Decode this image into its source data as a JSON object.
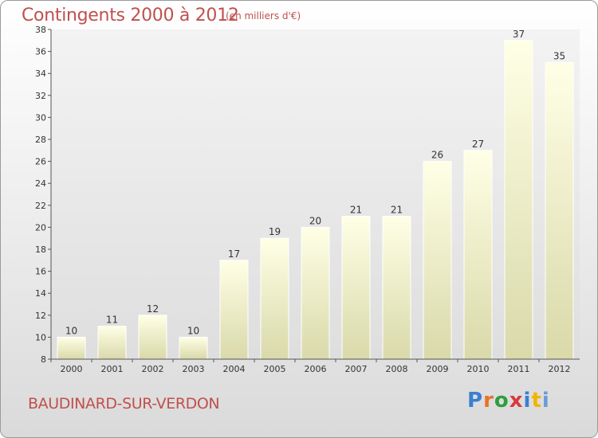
{
  "title": "Contingents 2000 à 2012",
  "subtitle": "(en milliers d'€)",
  "commune": "BAUDINARD-SUR-VERDON",
  "logo": {
    "text": "Proxiti",
    "colors": [
      "#3a7fd0",
      "#e8732a",
      "#2e9e3e",
      "#d63b3b",
      "#3a7fd0",
      "#f2b400",
      "#6a9bd8"
    ]
  },
  "chart_data": {
    "type": "bar",
    "categories": [
      "2000",
      "2001",
      "2002",
      "2003",
      "2004",
      "2005",
      "2006",
      "2007",
      "2008",
      "2009",
      "2010",
      "2011",
      "2012"
    ],
    "values": [
      10,
      11,
      12,
      10,
      17,
      19,
      20,
      21,
      21,
      26,
      27,
      37,
      35
    ],
    "ylim": [
      8,
      38
    ],
    "yticks": [
      8,
      10,
      12,
      14,
      16,
      18,
      20,
      22,
      24,
      26,
      28,
      30,
      32,
      34,
      36,
      38
    ],
    "grid": false,
    "bar_color": "#f4f4cc"
  }
}
